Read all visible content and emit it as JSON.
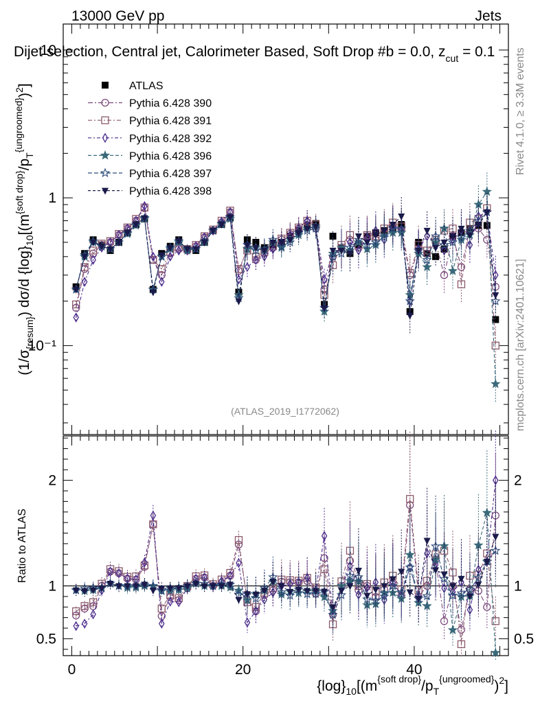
{
  "header": {
    "energy": "13000 GeV pp",
    "category": "Jets",
    "title": "Dijet selection, Central jet, Calorimeter Based, Soft Drop #b = 0.0, z",
    "title_sub": "cut",
    "title_tail": " = 0.1",
    "watermark_rivet": "Rivet 4.1.0, ≥ 3.3M events",
    "watermark_mcplots": "mcplots.cern.ch [arXiv:2401.10621]",
    "analysis_id": "(ATLAS_2019_I1772062)"
  },
  "chart_data": [
    {
      "type": "scatter",
      "panel": "main",
      "ylabel": "(1/σ_{resum}) dσ/d {log}_10[(m^{soft drop}/p_T^{ungroomed})^2]",
      "yscale": "log",
      "ylim": [
        0.025,
        15
      ],
      "xlim": [
        -1,
        51
      ],
      "yticks": [
        {
          "v": 0.1,
          "label": "10⁻¹"
        },
        {
          "v": 1,
          "label": "1"
        },
        {
          "v": 10,
          "label": "10"
        }
      ],
      "x": [
        0.5,
        1.5,
        2.5,
        3.5,
        4.5,
        5.5,
        6.5,
        7.5,
        8.5,
        9.5,
        10.5,
        11.5,
        12.5,
        13.5,
        14.5,
        15.5,
        16.5,
        17.5,
        18.5,
        19.5,
        20.5,
        21.5,
        22.5,
        23.5,
        24.5,
        25.5,
        26.5,
        27.5,
        28.5,
        29.5,
        30.5,
        31.5,
        32.5,
        33.5,
        34.5,
        35.5,
        36.5,
        37.5,
        38.5,
        39.5,
        40.5,
        41.5,
        42.5,
        43.5,
        44.5,
        45.5,
        46.5,
        47.5,
        48.5,
        49.5
      ],
      "series": [
        {
          "name": "ATLAS",
          "marker": "square-filled",
          "color": "#000000",
          "values": [
            0.25,
            0.42,
            0.52,
            0.48,
            0.44,
            0.5,
            0.58,
            0.66,
            0.72,
            0.24,
            0.42,
            0.47,
            0.52,
            0.45,
            0.44,
            0.5,
            0.6,
            0.66,
            0.73,
            0.23,
            0.52,
            0.5,
            0.46,
            0.48,
            0.5,
            0.55,
            0.6,
            0.65,
            0.67,
            0.19,
            0.55,
            0.46,
            0.42,
            0.48,
            0.55,
            0.58,
            0.6,
            0.62,
            0.66,
            0.17,
            0.5,
            0.42,
            0.4,
            0.45,
            0.55,
            0.58,
            0.62,
            0.65,
            0.65,
            0.15
          ]
        },
        {
          "name": "Pythia 6.428 390",
          "marker": "circle-open",
          "color": "#7b4a7b",
          "values": [
            0.18,
            0.33,
            0.42,
            0.48,
            0.5,
            0.56,
            0.62,
            0.7,
            0.85,
            0.38,
            0.3,
            0.42,
            0.45,
            0.44,
            0.47,
            0.54,
            0.6,
            0.68,
            0.8,
            0.32,
            0.45,
            0.38,
            0.42,
            0.46,
            0.52,
            0.57,
            0.62,
            0.68,
            0.62,
            0.24,
            0.4,
            0.46,
            0.52,
            0.46,
            0.55,
            0.52,
            0.58,
            0.64,
            0.6,
            0.3,
            0.45,
            0.42,
            0.5,
            0.3,
            0.55,
            0.34,
            0.6,
            0.62,
            0.52,
            0.25
          ]
        },
        {
          "name": "Pythia 6.428 391",
          "marker": "square-open",
          "color": "#8b5a6b",
          "values": [
            0.19,
            0.34,
            0.44,
            0.49,
            0.51,
            0.57,
            0.63,
            0.72,
            0.86,
            0.38,
            0.33,
            0.43,
            0.46,
            0.45,
            0.48,
            0.55,
            0.61,
            0.7,
            0.82,
            0.33,
            0.44,
            0.4,
            0.43,
            0.47,
            0.53,
            0.58,
            0.63,
            0.7,
            0.66,
            0.22,
            0.35,
            0.48,
            0.56,
            0.48,
            0.56,
            0.55,
            0.62,
            0.68,
            0.64,
            0.31,
            0.48,
            0.44,
            0.52,
            0.6,
            0.62,
            0.26,
            0.68,
            0.72,
            0.85,
            0.1
          ]
        },
        {
          "name": "Pythia 6.428 392",
          "marker": "diamond-open",
          "color": "#4a2a8b",
          "values": [
            0.155,
            0.27,
            0.38,
            0.46,
            0.5,
            0.56,
            0.62,
            0.7,
            0.88,
            0.4,
            0.27,
            0.4,
            0.44,
            0.44,
            0.47,
            0.54,
            0.6,
            0.69,
            0.8,
            0.28,
            0.34,
            0.38,
            0.4,
            0.45,
            0.5,
            0.56,
            0.62,
            0.7,
            0.64,
            0.28,
            0.42,
            0.45,
            0.5,
            0.44,
            0.54,
            0.6,
            0.52,
            0.64,
            0.6,
            0.2,
            0.45,
            0.55,
            0.48,
            0.44,
            0.52,
            0.6,
            0.48,
            0.75,
            0.8,
            0.3
          ]
        },
        {
          "name": "Pythia 6.428 396",
          "marker": "star-filled",
          "color": "#3a6a7a",
          "values": [
            0.24,
            0.4,
            0.5,
            0.47,
            0.45,
            0.5,
            0.57,
            0.65,
            0.72,
            0.24,
            0.4,
            0.45,
            0.5,
            0.44,
            0.45,
            0.5,
            0.6,
            0.66,
            0.72,
            0.22,
            0.45,
            0.46,
            0.44,
            0.5,
            0.46,
            0.52,
            0.56,
            0.62,
            0.64,
            0.17,
            0.42,
            0.46,
            0.44,
            0.5,
            0.45,
            0.48,
            0.56,
            0.58,
            0.58,
            0.22,
            0.42,
            0.34,
            0.5,
            0.62,
            0.32,
            0.52,
            0.56,
            0.9,
            1.1,
            0.055
          ]
        },
        {
          "name": "Pythia 6.428 397",
          "marker": "star-open",
          "color": "#2a4a7a",
          "values": [
            0.24,
            0.41,
            0.51,
            0.47,
            0.45,
            0.5,
            0.58,
            0.66,
            0.73,
            0.24,
            0.4,
            0.46,
            0.51,
            0.45,
            0.45,
            0.51,
            0.6,
            0.67,
            0.74,
            0.21,
            0.48,
            0.44,
            0.45,
            0.52,
            0.47,
            0.5,
            0.58,
            0.6,
            0.62,
            0.18,
            0.4,
            0.42,
            0.46,
            0.52,
            0.48,
            0.5,
            0.54,
            0.62,
            0.62,
            0.2,
            0.44,
            0.38,
            0.55,
            0.48,
            0.5,
            0.54,
            0.6,
            0.7,
            0.8,
            0.2
          ]
        },
        {
          "name": "Pythia 6.428 398",
          "marker": "triangle-down-filled",
          "color": "#1a1a4a",
          "values": [
            0.24,
            0.4,
            0.5,
            0.47,
            0.45,
            0.5,
            0.58,
            0.66,
            0.73,
            0.23,
            0.41,
            0.46,
            0.51,
            0.45,
            0.45,
            0.5,
            0.6,
            0.66,
            0.74,
            0.2,
            0.48,
            0.46,
            0.44,
            0.5,
            0.5,
            0.52,
            0.58,
            0.62,
            0.64,
            0.18,
            0.44,
            0.44,
            0.42,
            0.55,
            0.5,
            0.56,
            0.6,
            0.66,
            0.75,
            0.16,
            0.44,
            0.6,
            0.46,
            0.5,
            0.55,
            0.62,
            0.56,
            0.66,
            0.8,
            0.22
          ]
        }
      ]
    },
    {
      "type": "scatter",
      "panel": "ratio",
      "ylabel": "Ratio to ATLAS",
      "xlabel": "{log}_10[(m^{soft drop}/p_T^{ungroomed})^2]",
      "ylim": [
        0.34,
        2.42
      ],
      "xlim": [
        -1,
        51
      ],
      "yticks": [
        {
          "v": 0.5,
          "label": "0.5"
        },
        {
          "v": 1,
          "label": "1"
        },
        {
          "v": 2,
          "label": "2"
        }
      ],
      "xticks": [
        {
          "v": 0,
          "label": "0"
        },
        {
          "v": 20,
          "label": "20"
        },
        {
          "v": 40,
          "label": "40"
        }
      ],
      "reference": 1
    }
  ],
  "legend": {
    "entries": [
      "ATLAS",
      "Pythia 6.428 390",
      "Pythia 6.428 391",
      "Pythia 6.428 392",
      "Pythia 6.428 396",
      "Pythia 6.428 397",
      "Pythia 6.428 398"
    ]
  }
}
